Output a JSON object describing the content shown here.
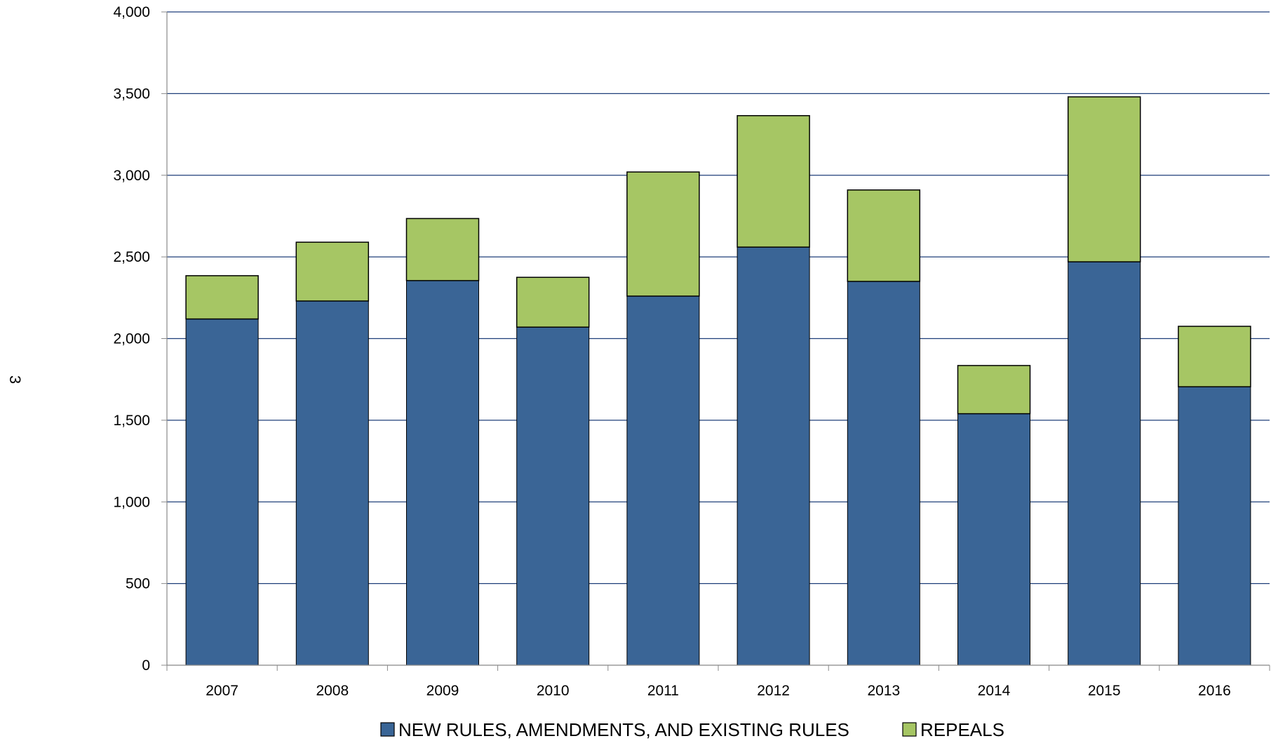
{
  "page_marker": "3",
  "chart_data": {
    "type": "bar",
    "stacked": true,
    "categories": [
      "2007",
      "2008",
      "2009",
      "2010",
      "2011",
      "2012",
      "2013",
      "2014",
      "2015",
      "2016"
    ],
    "series": [
      {
        "name": "NEW RULES, AMENDMENTS, AND EXISTING RULES",
        "color": "#3A6596",
        "values": [
          2120,
          2230,
          2355,
          2070,
          2260,
          2560,
          2350,
          1540,
          2470,
          1705
        ]
      },
      {
        "name": "REPEALS",
        "color": "#A6C664",
        "values": [
          265,
          360,
          380,
          305,
          760,
          805,
          560,
          295,
          1010,
          370
        ]
      }
    ],
    "ylim": [
      0,
      4000
    ],
    "yticks": [
      0,
      500,
      1000,
      1500,
      2000,
      2500,
      3000,
      3500,
      4000
    ],
    "ytick_labels": [
      "0",
      "500",
      "1,000",
      "1,500",
      "2,000",
      "2,500",
      "3,000",
      "3,500",
      "4,000"
    ],
    "grid": true,
    "grid_color": "#1F3F7A",
    "legend_position": "bottom"
  }
}
